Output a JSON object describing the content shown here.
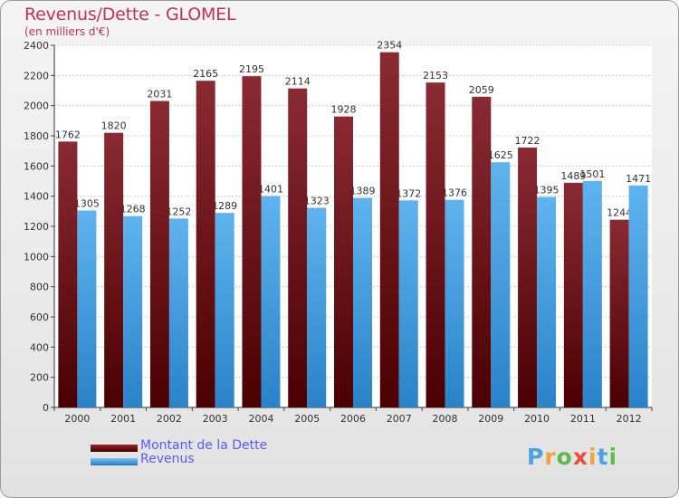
{
  "chart_data": {
    "type": "bar",
    "title": "Revenus/Dette - GLOMEL",
    "subtitle": "(en milliers d'€)",
    "categories": [
      "2000",
      "2001",
      "2002",
      "2003",
      "2004",
      "2005",
      "2006",
      "2007",
      "2008",
      "2009",
      "2010",
      "2011",
      "2012"
    ],
    "series": [
      {
        "name": "Montant de la Dette",
        "color": "#7a1519",
        "values": [
          1762,
          1820,
          2031,
          2165,
          2195,
          2114,
          1928,
          2354,
          2153,
          2059,
          1722,
          1489,
          1244
        ]
      },
      {
        "name": "Revenus",
        "color": "#3a9ae0",
        "values": [
          1305,
          1268,
          1252,
          1289,
          1401,
          1323,
          1389,
          1372,
          1376,
          1625,
          1395,
          1501,
          1471
        ]
      }
    ],
    "ylim": [
      0,
      2400
    ],
    "yticks": [
      0,
      200,
      400,
      600,
      800,
      1000,
      1200,
      1400,
      1600,
      1800,
      2000,
      2200,
      2400
    ],
    "grid": true,
    "legend": "bottom-left"
  },
  "branding": {
    "logo_letters": [
      "P",
      "r",
      "o",
      "x",
      "i",
      "t",
      "i"
    ],
    "logo_colors": [
      "#4da3e0",
      "#f2a33a",
      "#5dbb4a",
      "#e84c3d",
      "#f2a33a",
      "#4da3e0",
      "#5dbb4a"
    ]
  }
}
